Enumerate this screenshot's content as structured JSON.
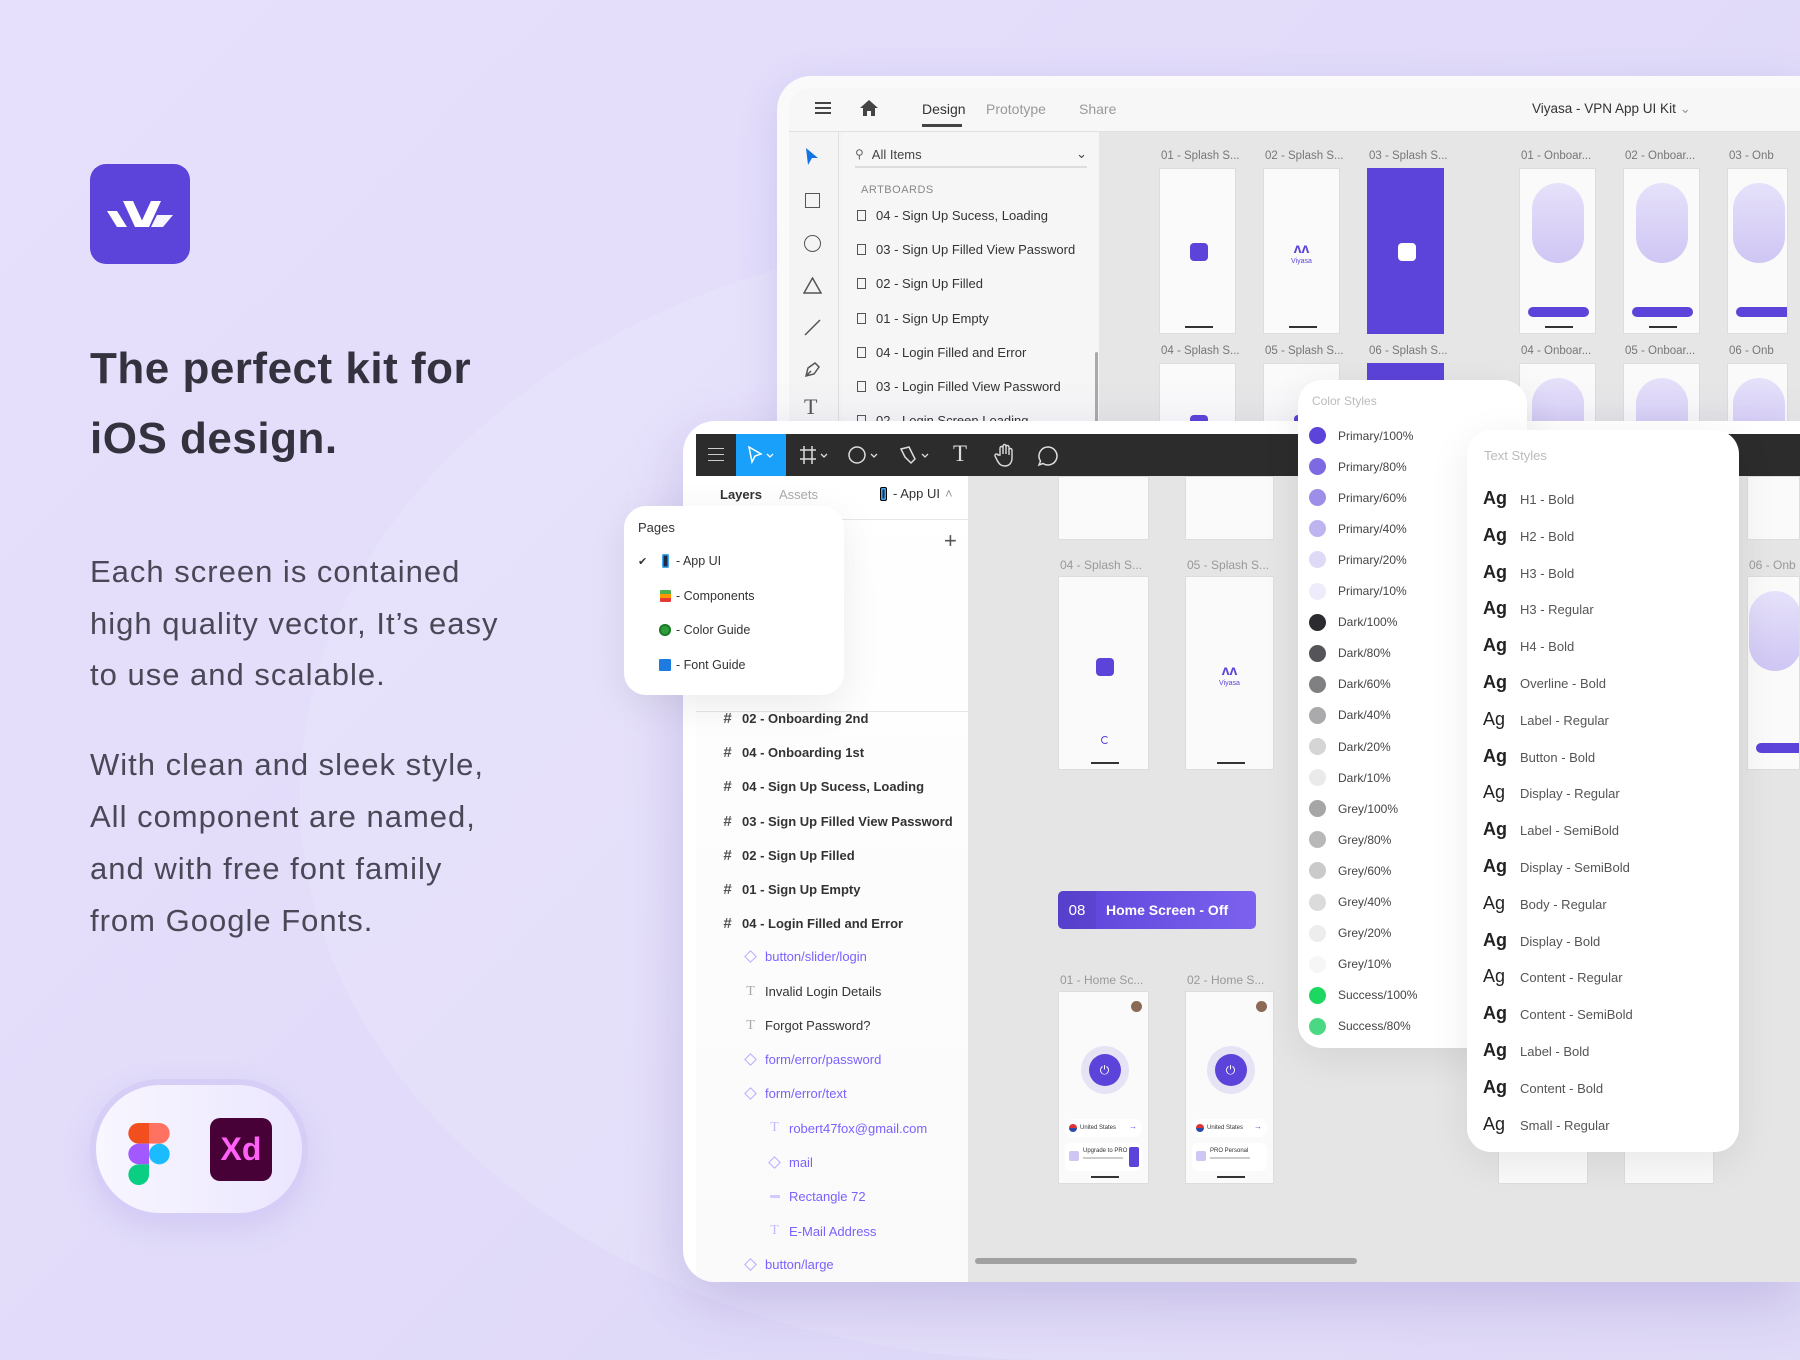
{
  "hero": {
    "heading": [
      "The perfect kit for",
      "iOS design."
    ],
    "paragraph1": [
      "Each screen is contained",
      "high quality vector, It’s easy",
      "to use and scalable."
    ],
    "paragraph2": [
      "With clean and sleek style,",
      "All component are named,",
      "and with free font family",
      "from Google Fonts."
    ],
    "tools_badge": {
      "figma_icon": "figma-logo",
      "xd_label": "Xd"
    }
  },
  "colors": {
    "primary": "#5c43d9",
    "background": "#e4defb",
    "canvas": "#e5e5e5",
    "figma_toolbar": "#2c2c2c",
    "selected_tool": "#18a0fb",
    "component": "#7b61ff"
  },
  "xd": {
    "tabs": [
      "Design",
      "Prototype",
      "Share"
    ],
    "active_tab": "Design",
    "doc_title": "Viyasa - VPN App UI Kit",
    "search": {
      "placeholder": "All Items"
    },
    "section": "ARTBOARDS",
    "artboard_list": [
      "04 - Sign Up Sucess, Loading",
      "03 - Sign Up Filled View Password",
      "02 - Sign Up Filled",
      "01 - Sign Up Empty",
      "04 - Login Filled and Error",
      "03 - Login Filled View Password",
      "02 - Login Screen Loading"
    ],
    "artboards_row1": [
      "01 - Splash S...",
      "02 - Splash S...",
      "03 - Splash S...",
      "01 - Onboar...",
      "02 - Onboar...",
      "03 - Onb"
    ],
    "artboards_row2": [
      "04 - Splash S...",
      "05 - Splash S...",
      "06 - Splash S...",
      "04 - Onboar...",
      "05 - Onboar...",
      "06 - Onb"
    ]
  },
  "figma": {
    "tabs": {
      "layers": "Layers",
      "assets": "Assets"
    },
    "current_page": "- App UI",
    "pages": {
      "title": "Pages",
      "items": [
        {
          "label": "- App UI",
          "checked": true,
          "icon": "phone-icon"
        },
        {
          "label": "- Components",
          "icon": "books-icon"
        },
        {
          "label": "- Color Guide",
          "icon": "clover-icon"
        },
        {
          "label": "- Font Guide",
          "icon": "grid-icon"
        }
      ]
    },
    "layers": [
      {
        "label": "02 - Onboarding 2nd",
        "type": "frame",
        "level": 0
      },
      {
        "label": "04 - Onboarding 1st",
        "type": "frame",
        "level": 0
      },
      {
        "label": "04 - Sign Up Sucess, Loading",
        "type": "frame",
        "level": 0
      },
      {
        "label": "03 - Sign Up Filled View Password",
        "type": "frame",
        "level": 0
      },
      {
        "label": "02 - Sign Up Filled",
        "type": "frame",
        "level": 0
      },
      {
        "label": "01 - Sign Up Empty",
        "type": "frame",
        "level": 0
      },
      {
        "label": "04 - Login Filled and Error",
        "type": "frame",
        "level": 0
      },
      {
        "label": "button/slider/login",
        "type": "component",
        "level": 1
      },
      {
        "label": "Invalid Login Details",
        "type": "text",
        "level": 1
      },
      {
        "label": "Forgot Password?",
        "type": "text",
        "level": 1
      },
      {
        "label": "form/error/password",
        "type": "component",
        "level": 1
      },
      {
        "label": "form/error/text",
        "type": "component",
        "level": 1
      },
      {
        "label": "robert47fox@gmail.com",
        "type": "text-comp",
        "level": 2
      },
      {
        "label": "mail",
        "type": "component",
        "level": 2
      },
      {
        "label": "Rectangle 72",
        "type": "rect",
        "level": 2
      },
      {
        "label": "E-Mail Address",
        "type": "text-comp",
        "level": 2
      },
      {
        "label": "button/large",
        "type": "component",
        "level": 1
      }
    ],
    "canvas": {
      "splash_labels": [
        "04 - Splash S...",
        "05 - Splash S..."
      ],
      "section_number": "08",
      "section_title": "Home Screen - Off",
      "home_labels": [
        "01 - Home Sc...",
        "02 - Home S..."
      ],
      "right_label": "06 - Onb",
      "home_card_text": [
        "United States",
        "Upgrade to PRO",
        "PRO Personal"
      ],
      "splash_brand": "Viyasa"
    },
    "color_styles": {
      "title": "Color Styles",
      "items": [
        {
          "name": "Primary/100%",
          "hex": "#5c43d9"
        },
        {
          "name": "Primary/80%",
          "hex": "#7d69e1"
        },
        {
          "name": "Primary/60%",
          "hex": "#9d8ee8"
        },
        {
          "name": "Primary/40%",
          "hex": "#beb4f0"
        },
        {
          "name": "Primary/20%",
          "hex": "#ded9f7"
        },
        {
          "name": "Primary/10%",
          "hex": "#eeecfb"
        },
        {
          "name": "Dark/100%",
          "hex": "#2b2b30"
        },
        {
          "name": "Dark/80%",
          "hex": "#555559"
        },
        {
          "name": "Dark/60%",
          "hex": "#808083"
        },
        {
          "name": "Dark/40%",
          "hex": "#aaaaac"
        },
        {
          "name": "Dark/20%",
          "hex": "#d5d5d6"
        },
        {
          "name": "Dark/10%",
          "hex": "#eaeaea"
        },
        {
          "name": "Grey/100%",
          "hex": "#a6a6a6"
        },
        {
          "name": "Grey/80%",
          "hex": "#b8b8b8"
        },
        {
          "name": "Grey/60%",
          "hex": "#cacaca"
        },
        {
          "name": "Grey/40%",
          "hex": "#dbdbdb"
        },
        {
          "name": "Grey/20%",
          "hex": "#ededed"
        },
        {
          "name": "Grey/10%",
          "hex": "#f6f6f6"
        },
        {
          "name": "Success/100%",
          "hex": "#1ed760"
        },
        {
          "name": "Success/80%",
          "hex": "#4bd884"
        }
      ]
    },
    "text_styles": {
      "title": "Text Styles",
      "sample": "Ag",
      "items": [
        {
          "name": "H1 - Bold",
          "bold": true
        },
        {
          "name": "H2 - Bold",
          "bold": true
        },
        {
          "name": "H3 - Bold",
          "bold": true
        },
        {
          "name": "H3 - Regular",
          "bold": true
        },
        {
          "name": "H4 - Bold",
          "bold": true
        },
        {
          "name": "Overline - Bold",
          "bold": true
        },
        {
          "name": "Label - Regular",
          "bold": false
        },
        {
          "name": "Button - Bold",
          "bold": true
        },
        {
          "name": "Display - Regular",
          "bold": false
        },
        {
          "name": "Label - SemiBold",
          "bold": true
        },
        {
          "name": "Display - SemiBold",
          "bold": true
        },
        {
          "name": "Body - Regular",
          "bold": false
        },
        {
          "name": "Display - Bold",
          "bold": true
        },
        {
          "name": "Content - Regular",
          "bold": false
        },
        {
          "name": "Content - SemiBold",
          "bold": true
        },
        {
          "name": "Label - Bold",
          "bold": true
        },
        {
          "name": "Content - Bold",
          "bold": true
        },
        {
          "name": "Small - Regular",
          "bold": false
        }
      ]
    }
  }
}
